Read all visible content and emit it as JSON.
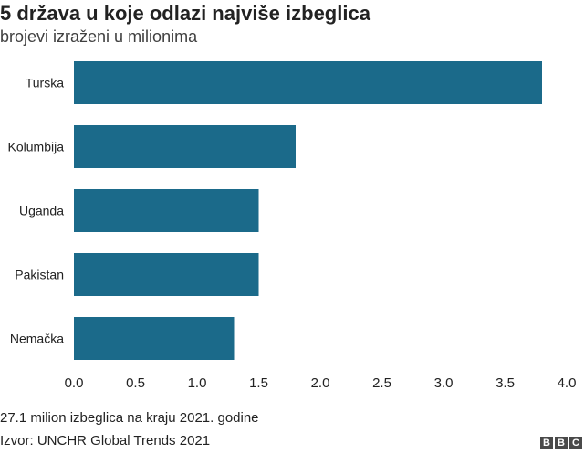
{
  "header": {
    "title": "5 država u koje odlazi najviše izbeglica",
    "subtitle": "brojevi izraženi u milionima"
  },
  "chart_data": {
    "type": "bar",
    "orientation": "horizontal",
    "categories": [
      "Turska",
      "Kolumbija",
      "Uganda",
      "Pakistan",
      "Nemačka"
    ],
    "values": [
      3.8,
      1.8,
      1.5,
      1.5,
      1.3
    ],
    "xlim": [
      0,
      4
    ],
    "xticks": [
      "0.0",
      "0.5",
      "1.0",
      "1.5",
      "2.0",
      "2.5",
      "3.0",
      "3.5",
      "4.0"
    ],
    "bar_color": "#1b6a8a",
    "grid": false
  },
  "footer": {
    "note": "27.1 milion izbeglica na kraju 2021. godine",
    "source": "Izvor: UNCHR Global Trends 2021",
    "logo_letters": [
      "B",
      "B",
      "C"
    ]
  }
}
